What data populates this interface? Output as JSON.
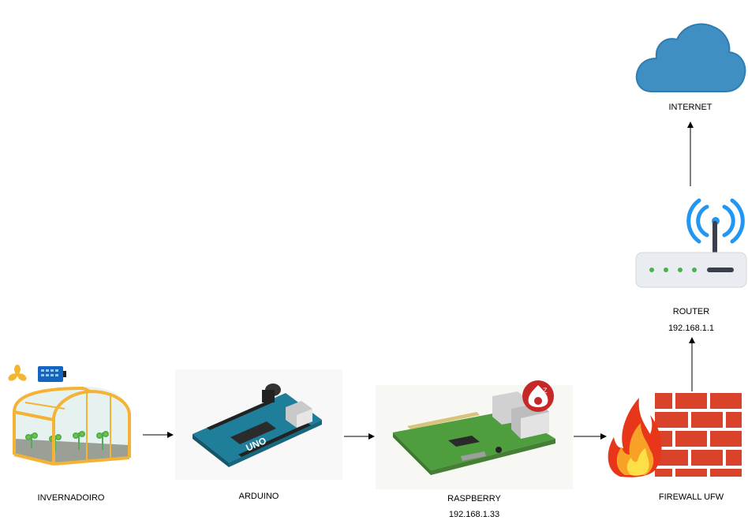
{
  "nodes": {
    "greenhouse": {
      "label": "INVERNADOIRO"
    },
    "arduino": {
      "label": "ARDUINO",
      "board_text": "UNO"
    },
    "raspberry": {
      "label": "RASPBERRY",
      "ip": "192.168.1.33"
    },
    "firewall": {
      "label": "FIREWALL UFW"
    },
    "router": {
      "label": "ROUTER",
      "ip": "192.168.1.1"
    },
    "internet": {
      "label": "INTERNET"
    }
  },
  "edges": [
    {
      "from": "greenhouse",
      "to": "arduino"
    },
    {
      "from": "arduino",
      "to": "raspberry"
    },
    {
      "from": "raspberry",
      "to": "firewall"
    },
    {
      "from": "firewall",
      "to": "router"
    },
    {
      "from": "router",
      "to": "internet"
    }
  ],
  "colors": {
    "cloud": "#3f8fc2",
    "wifi": "#2196f3",
    "brick": "#d9422b",
    "greenhouse_frame": "#f5b335",
    "arduino_board": "#1f7e99",
    "raspberry_board": "#4f9e3e"
  }
}
